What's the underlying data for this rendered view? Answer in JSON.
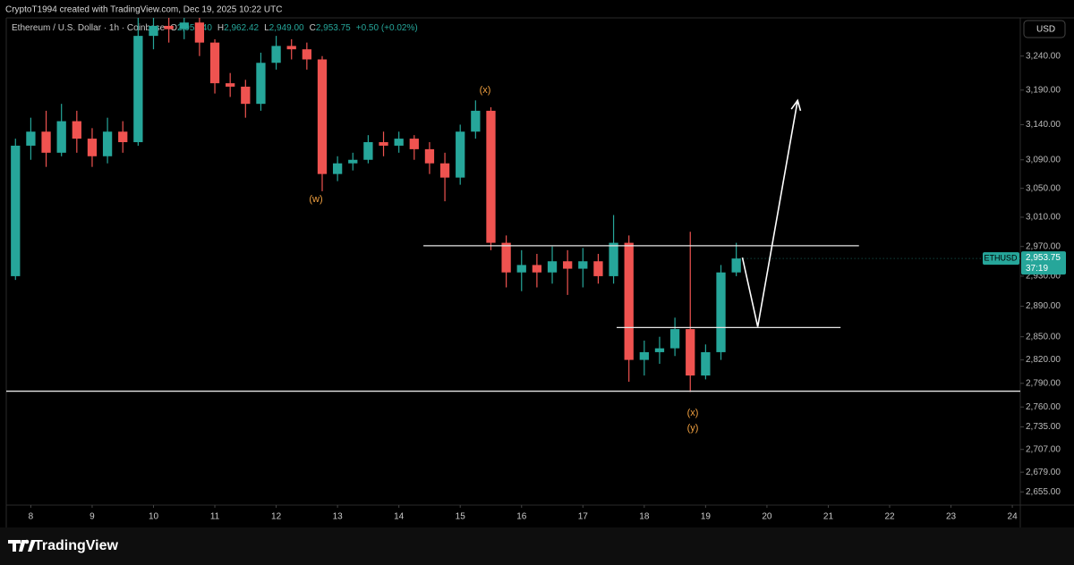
{
  "header": "CryptoT1994 created with TradingView.com, Dec 19, 2025 10:22 UTC",
  "legend": {
    "symbol": "Ethereum / U.S. Dollar · 1h · Coinbase",
    "fields": [
      {
        "label": "O",
        "value": "2,953.40"
      },
      {
        "label": "H",
        "value": "2,962.42"
      },
      {
        "label": "L",
        "value": "2,949.00"
      },
      {
        "label": "C",
        "value": "2,953.75"
      }
    ],
    "change": "+0.50 (+0.02%)"
  },
  "currency": "USD",
  "footer": "TradingView",
  "chart_data": {
    "type": "candlestick",
    "colors": {
      "up": "#26a69a",
      "down": "#ef5350"
    },
    "log_scale": true,
    "ylim": [
      2639,
      3297
    ],
    "yticks": [
      {
        "value": 3240,
        "label": "3,240.00"
      },
      {
        "value": 3190,
        "label": "3,190.00"
      },
      {
        "value": 3140,
        "label": "3,140.00"
      },
      {
        "value": 3090,
        "label": "3,090.00"
      },
      {
        "value": 3050,
        "label": "3,050.00"
      },
      {
        "value": 3010,
        "label": "3,010.00"
      },
      {
        "value": 2970,
        "label": "2,970.00"
      },
      {
        "value": 2930,
        "label": "2,930.00"
      },
      {
        "value": 2890,
        "label": "2,890.00"
      },
      {
        "value": 2850,
        "label": "2,850.00"
      },
      {
        "value": 2820,
        "label": "2,820.00"
      },
      {
        "value": 2790,
        "label": "2,790.00"
      },
      {
        "value": 2760,
        "label": "2,760.00"
      },
      {
        "value": 2735,
        "label": "2,735.00"
      },
      {
        "value": 2707,
        "label": "2,707.00"
      },
      {
        "value": 2679,
        "label": "2,679.00"
      },
      {
        "value": 2655,
        "label": "2,655.00"
      }
    ],
    "xlim": [
      7.6,
      24.13
    ],
    "xticks": [
      8,
      9,
      10,
      11,
      12,
      13,
      14,
      15,
      16,
      17,
      18,
      19,
      20,
      21,
      22,
      23,
      24
    ],
    "x": [
      7.75,
      8,
      8.25,
      8.5,
      8.75,
      9,
      9.25,
      9.5,
      9.75,
      10,
      10.25,
      10.5,
      10.75,
      11,
      11.25,
      11.5,
      11.75,
      12,
      12.25,
      12.5,
      12.75,
      13,
      13.25,
      13.5,
      13.75,
      14,
      14.25,
      14.5,
      14.75,
      15,
      15.25,
      15.5,
      15.75,
      16,
      16.25,
      16.5,
      16.75,
      17,
      17.25,
      17.5,
      17.75,
      18,
      18.25,
      18.5,
      18.75,
      19,
      19.25,
      19.5
    ],
    "open": [
      2930,
      3110,
      3130,
      3100,
      3145,
      3120,
      3095,
      3130,
      3115,
      3270,
      3285,
      3280,
      3290,
      3260,
      3200,
      3195,
      3170,
      3230,
      3255,
      3250,
      3235,
      3070,
      3085,
      3090,
      3115,
      3110,
      3120,
      3105,
      3085,
      3065,
      3130,
      3160,
      2975,
      2935,
      2945,
      2935,
      2950,
      2940,
      2950,
      2930,
      2975,
      2820,
      2830,
      2835,
      2860,
      2800,
      2830,
      2935
    ],
    "high": [
      3120,
      3150,
      3160,
      3170,
      3160,
      3135,
      3150,
      3145,
      3297,
      3297,
      3297,
      3297,
      3297,
      3265,
      3215,
      3205,
      3245,
      3270,
      3265,
      3260,
      3240,
      3095,
      3100,
      3125,
      3130,
      3130,
      3125,
      3115,
      3100,
      3140,
      3175,
      3165,
      2985,
      2965,
      2960,
      2970,
      2965,
      2968,
      2960,
      3013,
      2985,
      2845,
      2850,
      2875,
      2990,
      2840,
      2945,
      2975
    ],
    "low": [
      2925,
      3090,
      3080,
      3095,
      3100,
      3080,
      3085,
      3100,
      3110,
      3250,
      3260,
      3265,
      3240,
      3185,
      3180,
      3150,
      3160,
      3220,
      3235,
      3220,
      3046,
      3060,
      3075,
      3085,
      3095,
      3100,
      3090,
      3070,
      3032,
      3055,
      3120,
      2965,
      2915,
      2910,
      2915,
      2920,
      2905,
      2915,
      2920,
      2920,
      2792,
      2800,
      2815,
      2825,
      2779,
      2795,
      2820,
      2930
    ],
    "close": [
      3110,
      3130,
      3100,
      3145,
      3120,
      3095,
      3130,
      3115,
      3270,
      3285,
      3280,
      3290,
      3260,
      3200,
      3195,
      3170,
      3230,
      3255,
      3250,
      3235,
      3070,
      3085,
      3090,
      3115,
      3110,
      3120,
      3105,
      3085,
      3065,
      3130,
      3160,
      2975,
      2935,
      2945,
      2935,
      2950,
      2940,
      2950,
      2930,
      2975,
      2820,
      2830,
      2835,
      2860,
      2800,
      2830,
      2935,
      2953.75
    ],
    "last_price": {
      "value": 2953.75,
      "label": "2,953.75"
    },
    "symbol_tag": "ETHUSD",
    "countdown": "37:19",
    "levels": [
      {
        "value": 2971,
        "from": 14.4,
        "to": 21.5
      },
      {
        "value": 2862,
        "from": 17.55,
        "to": 21.2
      },
      {
        "value": 2780,
        "from": 7.6,
        "to": 24.13
      }
    ],
    "projection": {
      "x": [
        19.6,
        19.85,
        20.5
      ],
      "y": [
        2955,
        2863,
        3175
      ]
    },
    "annotations": [
      "(x)",
      "(w)",
      "(x)",
      "(y)"
    ]
  }
}
